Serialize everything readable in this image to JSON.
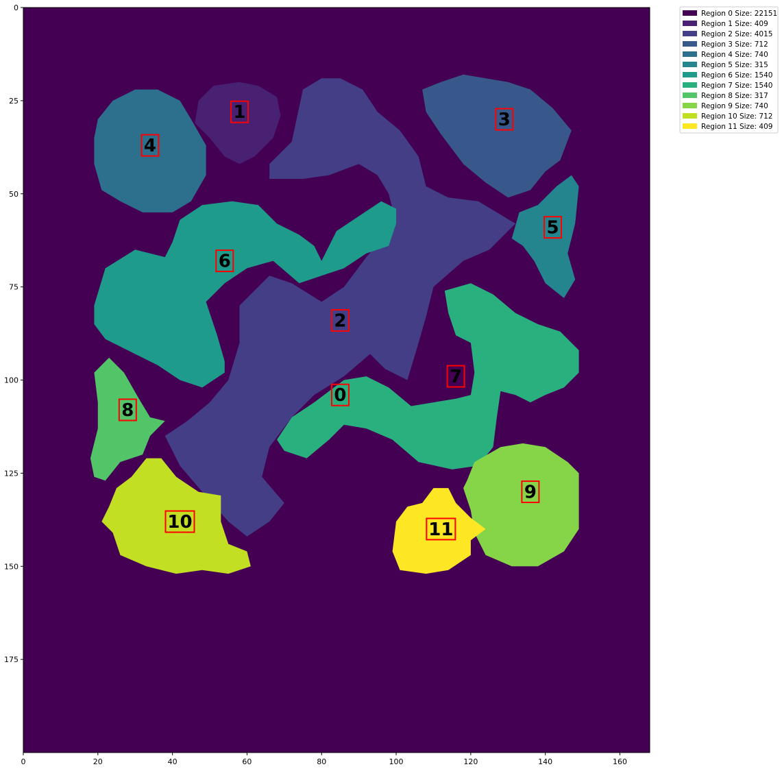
{
  "chart_data": {
    "type": "heatmap",
    "title": "",
    "xlabel": "",
    "ylabel": "",
    "colormap": "viridis",
    "xlim": [
      0,
      168
    ],
    "ylim": [
      200,
      0
    ],
    "grid": false,
    "legend_placement": "outside-top-right",
    "x_ticks": [
      0,
      20,
      40,
      60,
      80,
      100,
      120,
      140,
      160
    ],
    "y_ticks": [
      0,
      25,
      50,
      75,
      100,
      125,
      150,
      175
    ],
    "x_tick_labels": [
      "0",
      "20",
      "40",
      "60",
      "80",
      "100",
      "120",
      "140",
      "160"
    ],
    "y_tick_labels": [
      "0",
      "25",
      "50",
      "75",
      "100",
      "125",
      "150",
      "175"
    ],
    "regions": [
      {
        "id": 0,
        "label": "0",
        "legend": "Region 0 Size: 22151",
        "color": "#440154",
        "center": [
          85,
          104
        ]
      },
      {
        "id": 1,
        "label": "1",
        "legend": "Region 1 Size: 409",
        "color": "#482173",
        "center": [
          58,
          28
        ],
        "polygon": [
          [
            46,
            31
          ],
          [
            47,
            25
          ],
          [
            51,
            21
          ],
          [
            58,
            20
          ],
          [
            63,
            21
          ],
          [
            68,
            24
          ],
          [
            69,
            29
          ],
          [
            67,
            35
          ],
          [
            62,
            40
          ],
          [
            58,
            42
          ],
          [
            54,
            40
          ],
          [
            50,
            35
          ]
        ]
      },
      {
        "id": 2,
        "label": "2",
        "legend": "Region 2 Size: 4015",
        "color": "#433e85",
        "center": [
          85,
          84
        ],
        "polygon": [
          [
            72,
            36
          ],
          [
            75,
            22
          ],
          [
            80,
            19
          ],
          [
            85,
            19
          ],
          [
            91,
            22
          ],
          [
            95,
            28
          ],
          [
            101,
            33
          ],
          [
            106,
            40
          ],
          [
            108,
            48
          ],
          [
            114,
            51
          ],
          [
            122,
            52
          ],
          [
            127,
            55
          ],
          [
            132,
            58
          ],
          [
            125,
            65
          ],
          [
            118,
            68
          ],
          [
            110,
            75
          ],
          [
            108,
            83
          ],
          [
            106,
            90
          ],
          [
            103,
            100
          ],
          [
            97,
            97
          ],
          [
            93,
            93
          ],
          [
            86,
            99
          ],
          [
            78,
            104
          ],
          [
            72,
            110
          ],
          [
            66,
            118
          ],
          [
            64,
            126
          ],
          [
            70,
            133
          ],
          [
            66,
            138
          ],
          [
            60,
            142
          ],
          [
            55,
            138
          ],
          [
            48,
            130
          ],
          [
            42,
            123
          ],
          [
            38,
            115
          ],
          [
            44,
            111
          ],
          [
            50,
            106
          ],
          [
            55,
            100
          ],
          [
            58,
            90
          ],
          [
            58,
            80
          ],
          [
            66,
            72
          ],
          [
            72,
            74
          ],
          [
            80,
            79
          ],
          [
            86,
            75
          ],
          [
            92,
            67
          ],
          [
            100,
            58
          ],
          [
            98,
            50
          ],
          [
            95,
            45
          ],
          [
            90,
            42
          ],
          [
            82,
            45
          ],
          [
            75,
            46
          ],
          [
            66,
            46
          ],
          [
            66,
            42
          ]
        ]
      },
      {
        "id": 3,
        "label": "3",
        "legend": "Region 3 Size: 712",
        "color": "#38588c",
        "center": [
          129,
          30
        ],
        "polygon": [
          [
            107,
            22
          ],
          [
            112,
            20
          ],
          [
            118,
            18
          ],
          [
            124,
            19
          ],
          [
            130,
            20
          ],
          [
            136,
            22
          ],
          [
            142,
            27
          ],
          [
            147,
            33
          ],
          [
            144,
            41
          ],
          [
            140,
            44
          ],
          [
            136,
            49
          ],
          [
            130,
            51
          ],
          [
            124,
            47
          ],
          [
            118,
            42
          ],
          [
            112,
            34
          ],
          [
            108,
            28
          ]
        ]
      },
      {
        "id": 4,
        "label": "4",
        "legend": "Region 4 Size: 740",
        "color": "#2d708e",
        "center": [
          34,
          37
        ],
        "polygon": [
          [
            19,
            35
          ],
          [
            20,
            30
          ],
          [
            24,
            25
          ],
          [
            30,
            22
          ],
          [
            36,
            22
          ],
          [
            42,
            25
          ],
          [
            45,
            30
          ],
          [
            49,
            37
          ],
          [
            49,
            45
          ],
          [
            45,
            52
          ],
          [
            40,
            55
          ],
          [
            32,
            55
          ],
          [
            26,
            52
          ],
          [
            21,
            49
          ],
          [
            19,
            42
          ]
        ]
      },
      {
        "id": 5,
        "label": "5",
        "legend": "Region 5 Size: 315",
        "color": "#25858e",
        "center": [
          142,
          59
        ],
        "polygon": [
          [
            133,
            55
          ],
          [
            138,
            53
          ],
          [
            143,
            48
          ],
          [
            147,
            45
          ],
          [
            149,
            48
          ],
          [
            148,
            58
          ],
          [
            146,
            66
          ],
          [
            148,
            73
          ],
          [
            145,
            78
          ],
          [
            140,
            74
          ],
          [
            137,
            68
          ],
          [
            134,
            64
          ],
          [
            131,
            62
          ]
        ]
      },
      {
        "id": 6,
        "label": "6",
        "legend": "Region 6 Size: 1540",
        "color": "#1e9b8a",
        "center": [
          54,
          68
        ],
        "polygon": [
          [
            19,
            80
          ],
          [
            22,
            70
          ],
          [
            30,
            65
          ],
          [
            38,
            67
          ],
          [
            40,
            63
          ],
          [
            42,
            57
          ],
          [
            48,
            53
          ],
          [
            56,
            52
          ],
          [
            63,
            53
          ],
          [
            68,
            58
          ],
          [
            74,
            61
          ],
          [
            78,
            64
          ],
          [
            80,
            68
          ],
          [
            84,
            60
          ],
          [
            90,
            56
          ],
          [
            96,
            52
          ],
          [
            100,
            54
          ],
          [
            100,
            58
          ],
          [
            98,
            64
          ],
          [
            92,
            66
          ],
          [
            86,
            70
          ],
          [
            80,
            72
          ],
          [
            74,
            74
          ],
          [
            67,
            68
          ],
          [
            60,
            70
          ],
          [
            54,
            74
          ],
          [
            49,
            79
          ],
          [
            52,
            88
          ],
          [
            54,
            95
          ],
          [
            54,
            98
          ],
          [
            48,
            102
          ],
          [
            42,
            100
          ],
          [
            36,
            96
          ],
          [
            30,
            93
          ],
          [
            22,
            89
          ],
          [
            19,
            85
          ]
        ]
      },
      {
        "id": 7,
        "label": "7",
        "legend": "Region 7 Size: 1540",
        "color": "#2ab07f",
        "center": [
          116,
          99
        ],
        "polygon": [
          [
            68,
            116
          ],
          [
            72,
            110
          ],
          [
            78,
            106
          ],
          [
            82,
            103
          ],
          [
            86,
            100
          ],
          [
            92,
            99
          ],
          [
            98,
            102
          ],
          [
            104,
            107
          ],
          [
            110,
            106
          ],
          [
            116,
            105
          ],
          [
            120,
            104
          ],
          [
            121,
            98
          ],
          [
            120,
            90
          ],
          [
            116,
            88
          ],
          [
            114,
            82
          ],
          [
            113,
            76
          ],
          [
            120,
            74
          ],
          [
            126,
            77
          ],
          [
            132,
            82
          ],
          [
            138,
            85
          ],
          [
            144,
            87
          ],
          [
            149,
            92
          ],
          [
            149,
            98
          ],
          [
            145,
            102
          ],
          [
            140,
            104
          ],
          [
            136,
            106
          ],
          [
            132,
            104
          ],
          [
            128,
            103
          ],
          [
            127,
            110
          ],
          [
            126,
            118
          ],
          [
            122,
            123
          ],
          [
            115,
            124
          ],
          [
            106,
            122
          ],
          [
            99,
            116
          ],
          [
            92,
            113
          ],
          [
            86,
            112
          ],
          [
            82,
            116
          ],
          [
            76,
            121
          ],
          [
            70,
            119
          ]
        ]
      },
      {
        "id": 8,
        "label": "8",
        "legend": "Region 8 Size: 317",
        "color": "#52c569",
        "center": [
          28,
          108
        ],
        "polygon": [
          [
            19,
            98
          ],
          [
            23,
            94
          ],
          [
            27,
            98
          ],
          [
            31,
            105
          ],
          [
            34,
            110
          ],
          [
            38,
            111
          ],
          [
            34,
            115
          ],
          [
            32,
            120
          ],
          [
            26,
            122
          ],
          [
            22,
            127
          ],
          [
            19,
            126
          ],
          [
            18,
            121
          ],
          [
            20,
            113
          ],
          [
            20,
            106
          ]
        ]
      },
      {
        "id": 9,
        "label": "9",
        "legend": "Region 9 Size: 740",
        "color": "#86d549",
        "center": [
          136,
          130
        ],
        "polygon": [
          [
            119,
            127
          ],
          [
            121,
            122
          ],
          [
            128,
            118
          ],
          [
            134,
            117
          ],
          [
            140,
            118
          ],
          [
            146,
            122
          ],
          [
            149,
            125
          ],
          [
            149,
            140
          ],
          [
            145,
            146
          ],
          [
            138,
            150
          ],
          [
            131,
            150
          ],
          [
            124,
            147
          ],
          [
            121,
            141
          ],
          [
            120,
            135
          ],
          [
            118,
            129
          ]
        ]
      },
      {
        "id": 10,
        "label": "10",
        "legend": "Region 10 Size: 712",
        "color": "#c2df23",
        "center": [
          42,
          138
        ],
        "polygon": [
          [
            23,
            134
          ],
          [
            25,
            129
          ],
          [
            29,
            126
          ],
          [
            33,
            121
          ],
          [
            37,
            121
          ],
          [
            41,
            126
          ],
          [
            47,
            130
          ],
          [
            53,
            131
          ],
          [
            53,
            138
          ],
          [
            55,
            144
          ],
          [
            60,
            146
          ],
          [
            61,
            150
          ],
          [
            55,
            152
          ],
          [
            48,
            151
          ],
          [
            41,
            152
          ],
          [
            33,
            150
          ],
          [
            26,
            147
          ],
          [
            24,
            141
          ],
          [
            21,
            138
          ]
        ]
      },
      {
        "id": 11,
        "label": "11",
        "legend": "Region 11 Size: 409",
        "color": "#fde725",
        "center": [
          112,
          140
        ],
        "polygon": [
          [
            100,
            138
          ],
          [
            103,
            134
          ],
          [
            107,
            133
          ],
          [
            110,
            129
          ],
          [
            114,
            129
          ],
          [
            116,
            133
          ],
          [
            120,
            137
          ],
          [
            124,
            140
          ],
          [
            120,
            143
          ],
          [
            120,
            147
          ],
          [
            114,
            151
          ],
          [
            108,
            152
          ],
          [
            101,
            151
          ],
          [
            99,
            146
          ]
        ]
      }
    ]
  }
}
